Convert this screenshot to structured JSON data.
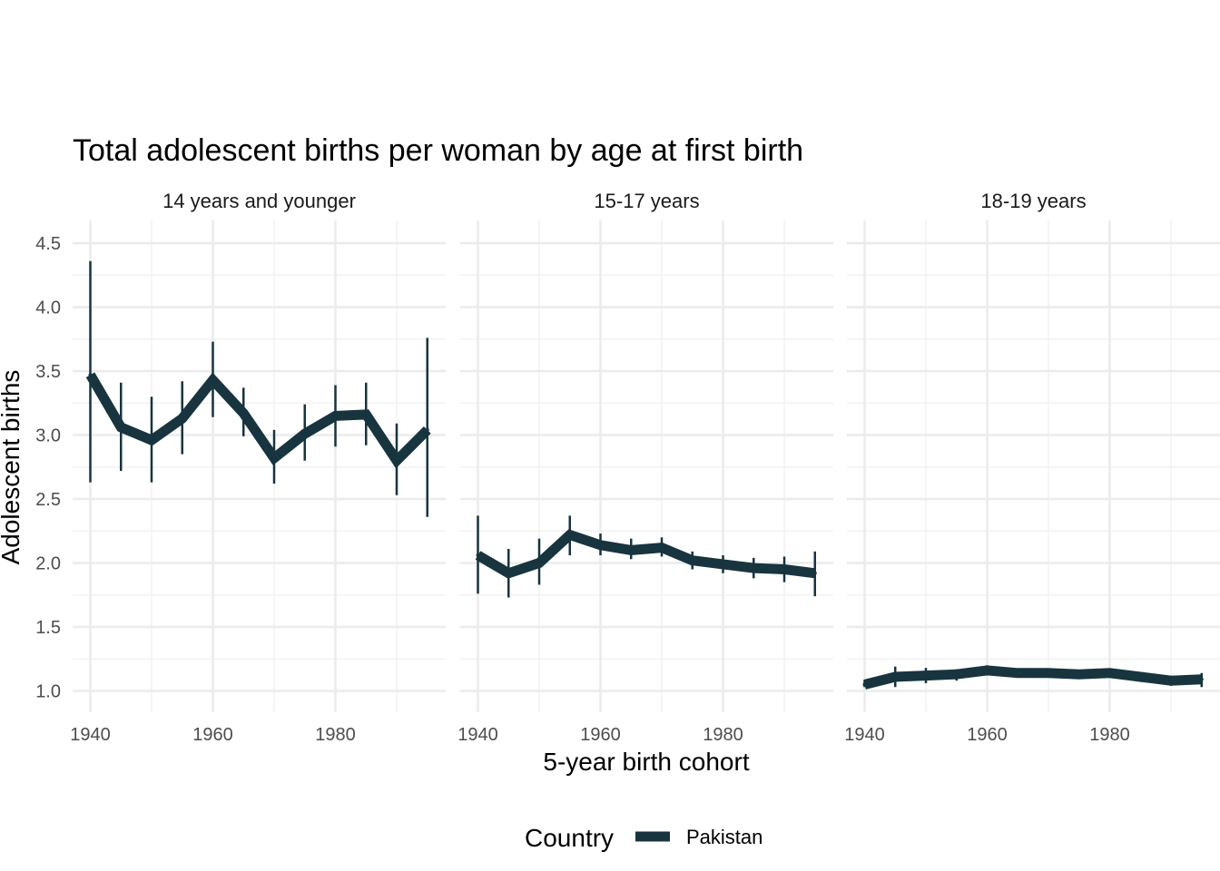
{
  "chart_data": {
    "type": "line",
    "title": "Total adolescent births per woman by age at first birth",
    "xlabel": "5-year birth cohort",
    "ylabel": "Adolescent births",
    "ylim": [
      0.85,
      4.65
    ],
    "xlim": [
      1938,
      1996
    ],
    "x_ticks": [
      1940,
      1960,
      1980
    ],
    "y_ticks": [
      1.0,
      1.5,
      2.0,
      2.5,
      3.0,
      3.5,
      4.0,
      4.5
    ],
    "y_tick_labels": [
      "1.0",
      "1.5",
      "2.0",
      "2.5",
      "3.0",
      "3.5",
      "4.0",
      "4.5"
    ],
    "x_tick_labels": [
      "1940",
      "1960",
      "1980"
    ],
    "grid": true,
    "legend": {
      "title": "Country",
      "position": "bottom",
      "entries": [
        "Pakistan"
      ]
    },
    "colors": {
      "Pakistan": "#17343f",
      "grid_major": "#ebebeb",
      "grid_minor": "#f2f2f2"
    },
    "panels": [
      {
        "label": "14 years and younger",
        "series": [
          {
            "name": "Pakistan",
            "x": [
              1940,
              1945,
              1950,
              1955,
              1960,
              1965,
              1970,
              1975,
              1980,
              1985,
              1990,
              1995
            ],
            "y": [
              3.47,
              3.06,
              2.96,
              3.13,
              3.43,
              3.17,
              2.82,
              3.01,
              3.15,
              3.16,
              2.8,
              3.04
            ],
            "lower": [
              2.63,
              2.72,
              2.63,
              2.85,
              3.14,
              2.99,
              2.62,
              2.8,
              2.91,
              2.92,
              2.53,
              2.36
            ],
            "upper": [
              4.36,
              3.41,
              3.3,
              3.42,
              3.73,
              3.37,
              3.04,
              3.24,
              3.39,
              3.41,
              3.09,
              3.76
            ]
          }
        ]
      },
      {
        "label": "15-17 years",
        "series": [
          {
            "name": "Pakistan",
            "x": [
              1940,
              1945,
              1950,
              1955,
              1960,
              1965,
              1970,
              1975,
              1980,
              1985,
              1990,
              1995
            ],
            "y": [
              2.06,
              1.92,
              2.0,
              2.22,
              2.14,
              2.1,
              2.12,
              2.02,
              1.99,
              1.96,
              1.95,
              1.92
            ],
            "lower": [
              1.76,
              1.73,
              1.83,
              2.06,
              2.06,
              2.03,
              2.05,
              1.95,
              1.92,
              1.88,
              1.85,
              1.74
            ],
            "upper": [
              2.37,
              2.11,
              2.19,
              2.37,
              2.23,
              2.19,
              2.2,
              2.09,
              2.06,
              2.04,
              2.05,
              2.09
            ]
          }
        ]
      },
      {
        "label": "18-19 years",
        "series": [
          {
            "name": "Pakistan",
            "x": [
              1940,
              1945,
              1950,
              1955,
              1960,
              1965,
              1970,
              1975,
              1980,
              1985,
              1990,
              1995
            ],
            "y": [
              1.05,
              1.11,
              1.12,
              1.13,
              1.16,
              1.14,
              1.14,
              1.13,
              1.14,
              1.11,
              1.08,
              1.09
            ],
            "lower": [
              1.03,
              1.03,
              1.06,
              1.08,
              1.12,
              1.11,
              1.11,
              1.1,
              1.11,
              1.07,
              1.04,
              1.03
            ],
            "upper": [
              1.08,
              1.19,
              1.18,
              1.17,
              1.2,
              1.17,
              1.17,
              1.16,
              1.17,
              1.14,
              1.12,
              1.14
            ]
          }
        ]
      }
    ]
  }
}
